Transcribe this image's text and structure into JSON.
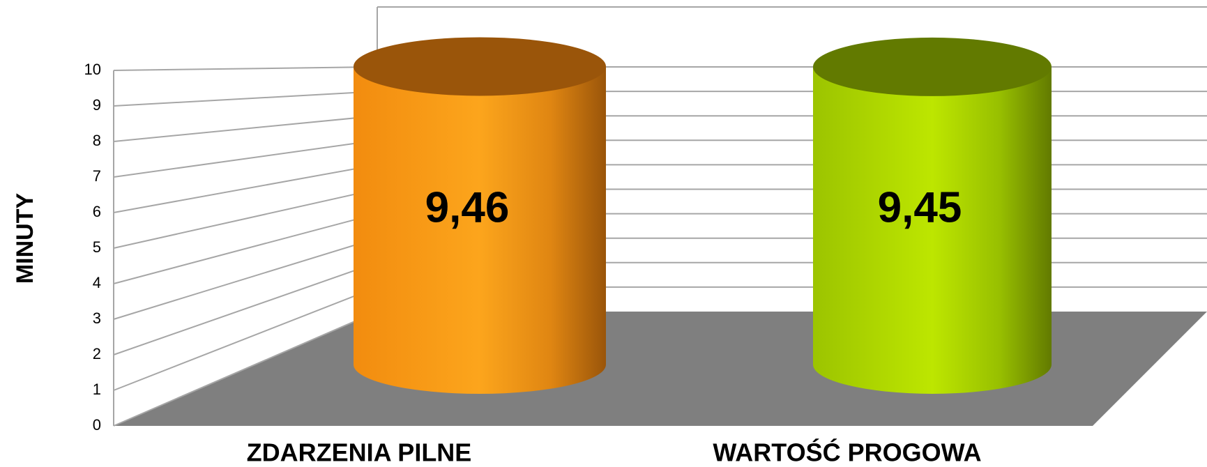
{
  "chart_data": {
    "type": "bar",
    "style": "3d-cylinder",
    "categories": [
      "ZDARZENIA PILNE",
      "WARTOŚĆ PROGOWA"
    ],
    "series": [
      {
        "values": [
          9.46,
          9.45
        ]
      }
    ],
    "data_labels": [
      "9,46",
      "9,45"
    ],
    "colors": [
      "#f7941d",
      "#a8d400"
    ],
    "title": "",
    "xlabel": "",
    "ylabel": "MINUTY",
    "ylim": [
      0,
      10
    ],
    "yticks": [
      "0",
      "1",
      "2",
      "3",
      "4",
      "5",
      "6",
      "7",
      "8",
      "9",
      "10"
    ],
    "grid": true,
    "floor_color": "#7f7f7f"
  }
}
